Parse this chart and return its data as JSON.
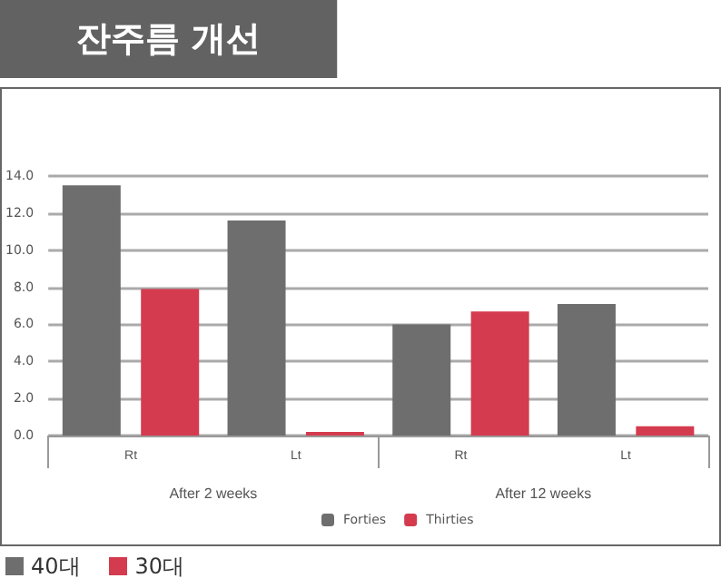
{
  "chart_data": {
    "type": "bar",
    "title": "잔주름 개선",
    "categories": [
      "Rt",
      "Lt",
      "Rt",
      "Lt"
    ],
    "series": [
      {
        "name": "Forties",
        "color": "#6e6e6e",
        "values": [
          13.5,
          11.6,
          6.0,
          7.1
        ]
      },
      {
        "name": "Thirties",
        "color": "#d43b4e",
        "values": [
          7.9,
          0.2,
          6.7,
          0.5
        ]
      }
    ],
    "ylim": [
      0,
      14
    ],
    "yticks": [
      {
        "value": 0,
        "label": "0.0"
      },
      {
        "value": 2,
        "label": "2.0"
      },
      {
        "value": 4,
        "label": "4.0"
      },
      {
        "value": 6,
        "label": "6.0"
      },
      {
        "value": 8,
        "label": "8.0"
      },
      {
        "value": 10,
        "label": "10.0"
      },
      {
        "value": 12,
        "label": "12.0"
      },
      {
        "value": 14,
        "label": "14.0"
      }
    ],
    "annotations": [
      "After 2 weeks",
      "After 12 weeks",
      "40대",
      "30대"
    ],
    "grid": "y",
    "legend": "bottom"
  }
}
